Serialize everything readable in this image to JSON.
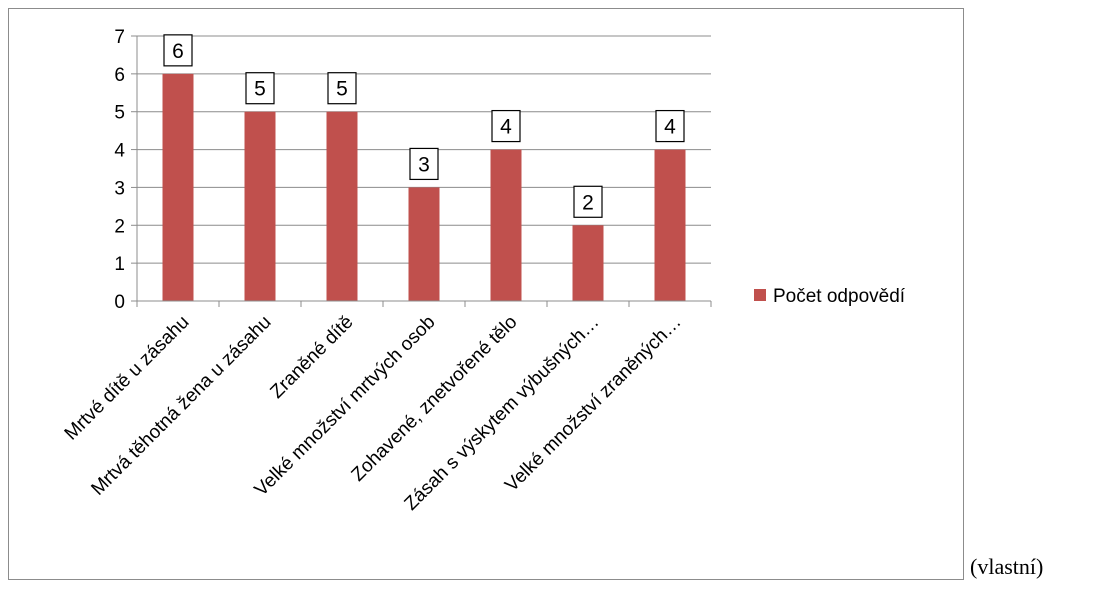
{
  "chart_data": {
    "type": "bar",
    "categories": [
      "Mrtvé dítě u zásahu",
      "Mrtvá těhotná žena u zásahu",
      "Zraněné dítě",
      "Velké množství mrtvých osob",
      "Zohavené, znetvořené tělo",
      "Zásah s výskytem  výbušných…",
      "Velké množství zraněných…"
    ],
    "series": [
      {
        "name": "Počet odpovědí",
        "values": [
          6,
          5,
          5,
          3,
          4,
          2,
          4
        ],
        "color": "#c0504d"
      }
    ],
    "ylim": [
      0,
      7
    ],
    "yticks": [
      0,
      1,
      2,
      3,
      4,
      5,
      6,
      7
    ],
    "grid": true,
    "data_labels": true,
    "legend_position": "right"
  },
  "source_note": "(vlastní)"
}
